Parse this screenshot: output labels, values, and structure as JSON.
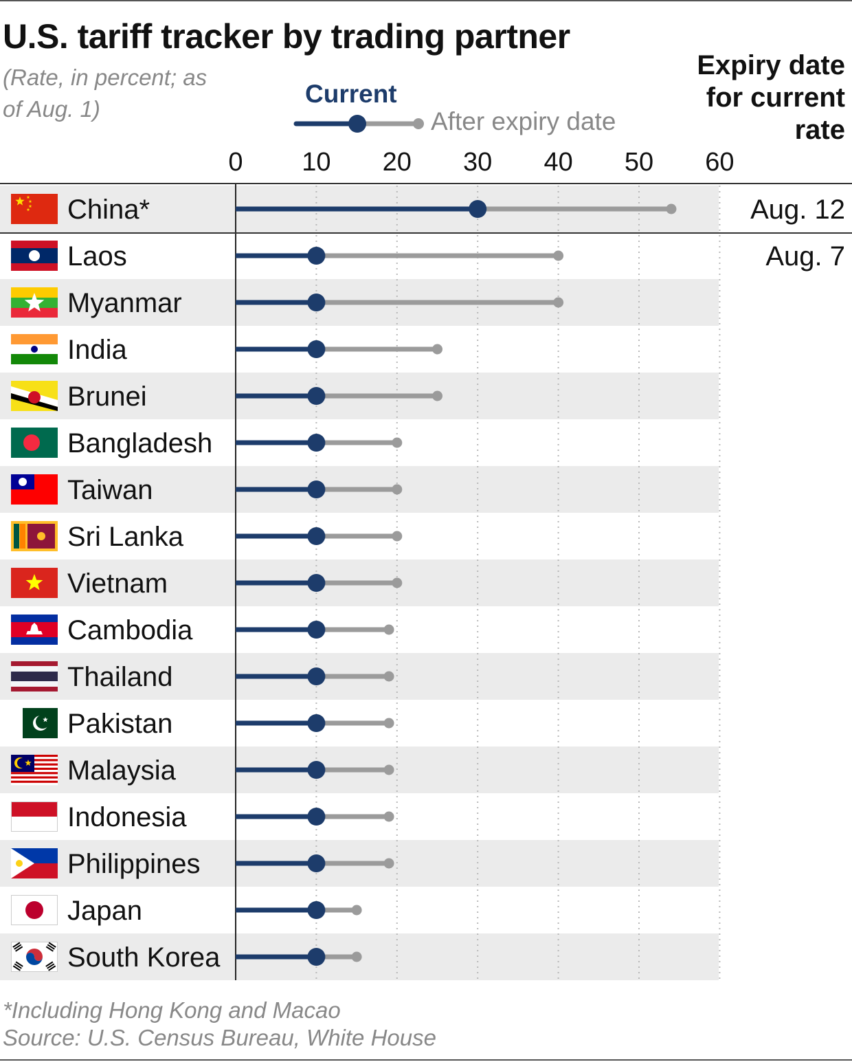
{
  "title": "U.S. tariff tracker by trading partner",
  "subtitle": "(Rate, in percent; as of Aug. 1)",
  "legend": {
    "current": "Current",
    "after": "After expiry date"
  },
  "expiry_header": "Expiry date for current rate",
  "footnote": "*Including Hong Kong and Macao",
  "source": "Source: U.S. Census Bureau, White House",
  "colors": {
    "current": "#1d3c6b",
    "after": "#9b9b9b",
    "band": "#ebebeb",
    "axis": "#222222",
    "grid": "#b8b8b8"
  },
  "chart_data": {
    "type": "dot-range",
    "title": "U.S. tariff tracker by trading partner",
    "xlim": [
      0,
      60
    ],
    "xticks": [
      0,
      10,
      20,
      30,
      40,
      50,
      60
    ],
    "series": [
      {
        "name": "Current",
        "key": "current"
      },
      {
        "name": "After expiry date",
        "key": "after"
      }
    ],
    "rows": [
      {
        "country": "China*",
        "flag": "china",
        "current": 30,
        "after": 54,
        "expiry": "Aug. 12"
      },
      {
        "country": "Laos",
        "flag": "laos",
        "current": 10,
        "after": 40,
        "expiry": "Aug. 7"
      },
      {
        "country": "Myanmar",
        "flag": "myanmar",
        "current": 10,
        "after": 40
      },
      {
        "country": "India",
        "flag": "india",
        "current": 10,
        "after": 25
      },
      {
        "country": "Brunei",
        "flag": "brunei",
        "current": 10,
        "after": 25
      },
      {
        "country": "Bangladesh",
        "flag": "bangladesh",
        "current": 10,
        "after": 20
      },
      {
        "country": "Taiwan",
        "flag": "taiwan",
        "current": 10,
        "after": 20
      },
      {
        "country": "Sri Lanka",
        "flag": "sri-lanka",
        "current": 10,
        "after": 20
      },
      {
        "country": "Vietnam",
        "flag": "vietnam",
        "current": 10,
        "after": 20
      },
      {
        "country": "Cambodia",
        "flag": "cambodia",
        "current": 10,
        "after": 19
      },
      {
        "country": "Thailand",
        "flag": "thailand",
        "current": 10,
        "after": 19
      },
      {
        "country": "Pakistan",
        "flag": "pakistan",
        "current": 10,
        "after": 19
      },
      {
        "country": "Malaysia",
        "flag": "malaysia",
        "current": 10,
        "after": 19
      },
      {
        "country": "Indonesia",
        "flag": "indonesia",
        "current": 10,
        "after": 19
      },
      {
        "country": "Philippines",
        "flag": "philippines",
        "current": 10,
        "after": 19
      },
      {
        "country": "Japan",
        "flag": "japan",
        "current": 10,
        "after": 15
      },
      {
        "country": "South Korea",
        "flag": "south-korea",
        "current": 10,
        "after": 15
      }
    ]
  }
}
